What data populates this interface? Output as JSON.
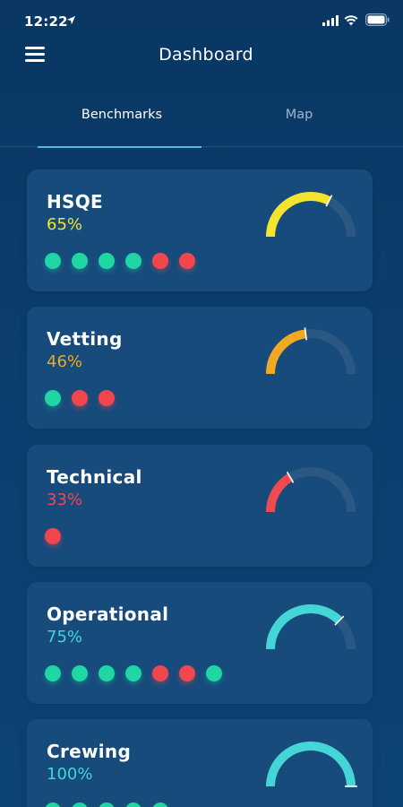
{
  "status_bar": {
    "time": "12:22",
    "icons": [
      "location-arrow-icon",
      "cellular-signal-icon",
      "wifi-icon",
      "battery-icon"
    ]
  },
  "header": {
    "title": "Dashboard",
    "menu_icon": "hamburger-menu-icon"
  },
  "tabs": [
    {
      "label": "Benchmarks",
      "active": true
    },
    {
      "label": "Map",
      "active": false
    }
  ],
  "colors": {
    "background": "#0b3a68",
    "card": "#164b7c",
    "track": "#2b5883",
    "yellow": "#f4e42e",
    "orange": "#f2a922",
    "red": "#ee4a4f",
    "cyan": "#44d6d6",
    "dot_green": "#1fd6a4",
    "dot_red": "#f0474e",
    "tab_indicator": "#58b7e8"
  },
  "benchmarks": [
    {
      "name": "HSQE",
      "percent_label": "65%",
      "value": 65,
      "color": "#f4e42e",
      "dots": [
        "green",
        "green",
        "green",
        "green",
        "red",
        "red"
      ]
    },
    {
      "name": "Vetting",
      "percent_label": "46%",
      "value": 46,
      "color": "#f2a922",
      "dots": [
        "green",
        "red",
        "red"
      ]
    },
    {
      "name": "Technical",
      "percent_label": "33%",
      "value": 33,
      "color": "#ee4a4f",
      "dots": [
        "red"
      ]
    },
    {
      "name": "Operational",
      "percent_label": "75%",
      "value": 75,
      "color": "#44d6d6",
      "dots": [
        "green",
        "green",
        "green",
        "green",
        "red",
        "red",
        "green"
      ]
    },
    {
      "name": "Crewing",
      "percent_label": "100%",
      "value": 100,
      "color": "#44d6d6",
      "dots": [
        "green",
        "green",
        "green",
        "green",
        "green"
      ]
    }
  ]
}
